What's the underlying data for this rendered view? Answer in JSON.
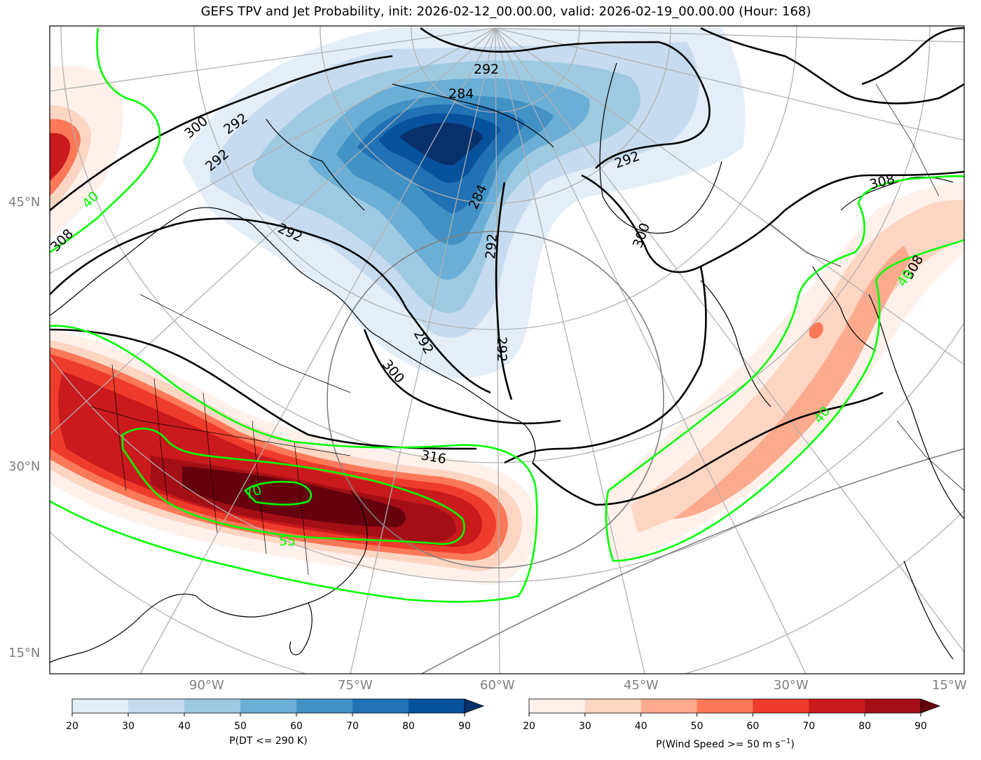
{
  "title": "GEFS TPV and Jet Probability, init: 2026-02-12_00.00.00, valid: 2026-02-19_00.00.00 (Hour: 168)",
  "lat_labels": [
    "45°N",
    "30°N",
    "15°N"
  ],
  "lon_labels": [
    "90°W",
    "75°W",
    "60°W",
    "45°W",
    "30°W",
    "15°W"
  ],
  "contour_labels": {
    "theta": [
      "292",
      "284",
      "292",
      "300",
      "292",
      "292",
      "292",
      "284",
      "292",
      "292",
      "300",
      "292",
      "300",
      "308",
      "308",
      "308",
      "316"
    ],
    "jet": [
      "40",
      "70",
      "55",
      "40",
      "40"
    ]
  },
  "colorbar_tpv": {
    "label": "P(DT <= 290 K)",
    "ticks": [
      "20",
      "30",
      "40",
      "50",
      "60",
      "70",
      "80",
      "90"
    ],
    "colors": [
      "#e3eef9",
      "#c6dbef",
      "#9ecae1",
      "#6baed6",
      "#4292c6",
      "#2171b5",
      "#08519c",
      "#08306b"
    ]
  },
  "colorbar_jet": {
    "label": "P(Wind Speed >= 50 m s",
    "label_sup": "−1",
    "label_end": ")",
    "ticks": [
      "20",
      "30",
      "40",
      "50",
      "60",
      "70",
      "80",
      "90"
    ],
    "colors": [
      "#fff0ea",
      "#fdd5c3",
      "#fcaa8e",
      "#fb7858",
      "#ef3b2c",
      "#ca1a1d",
      "#a30f15",
      "#67000d"
    ]
  }
}
